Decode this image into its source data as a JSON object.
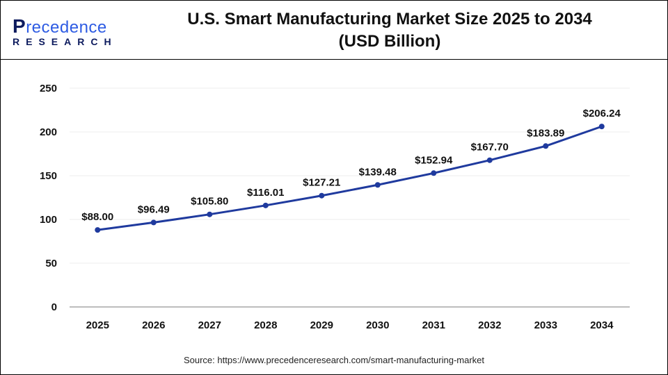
{
  "header": {
    "title_line1": "U.S. Smart Manufacturing Market Size 2025 to 2034",
    "title_line2": "(USD Billion)",
    "logo_text": "Precedence",
    "logo_subtext": "RESEARCH"
  },
  "source": "Source: https://www.precedenceresearch.com/smart-manufacturing-market",
  "chart_data": {
    "type": "line",
    "title": "U.S. Smart Manufacturing Market Size 2025 to 2034 (USD Billion)",
    "categories": [
      "2025",
      "2026",
      "2027",
      "2028",
      "2029",
      "2030",
      "2031",
      "2032",
      "2033",
      "2034"
    ],
    "values": [
      88.0,
      96.49,
      105.8,
      116.01,
      127.21,
      139.48,
      152.94,
      167.7,
      183.89,
      206.24
    ],
    "data_labels": [
      "$88.00",
      "$96.49",
      "$105.80",
      "$116.01",
      "$127.21",
      "$139.48",
      "$152.94",
      "$167.70",
      "$183.89",
      "$206.24"
    ],
    "yticks": [
      "0",
      "50",
      "100",
      "150",
      "200",
      "250"
    ],
    "ylim": [
      0,
      250
    ],
    "grid": true,
    "line_color": "#1f3a9e",
    "xlabel": "",
    "ylabel": ""
  }
}
